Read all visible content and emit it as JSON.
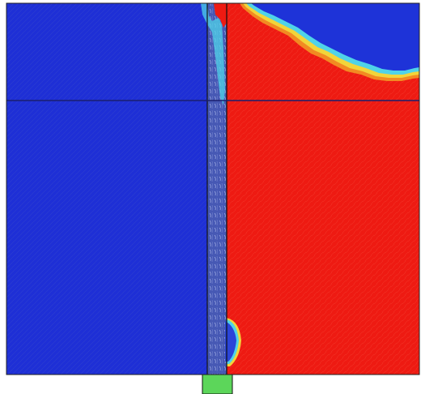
{
  "colors": {
    "background": "#ffffff",
    "left_region": "#1e2fd6",
    "left_region_dark": "#1826b8",
    "right_region": "#ee1a12",
    "right_region_light": "#f43526",
    "top_right_region": "#1e33d8",
    "channel": "#4a5fb8",
    "channel_speckle": "#b8c4f2",
    "interface_yellow": "#f2d43a",
    "interface_cyan": "#4fd3e8",
    "interface_orange": "#f28a22",
    "horizontal_line": "#1a1f6e",
    "outline": "#111111",
    "green_box": "#5cd65a"
  },
  "regions": [
    "left-blue-region",
    "central-channel",
    "right-red-region",
    "top-right-blue-region",
    "green-box"
  ]
}
